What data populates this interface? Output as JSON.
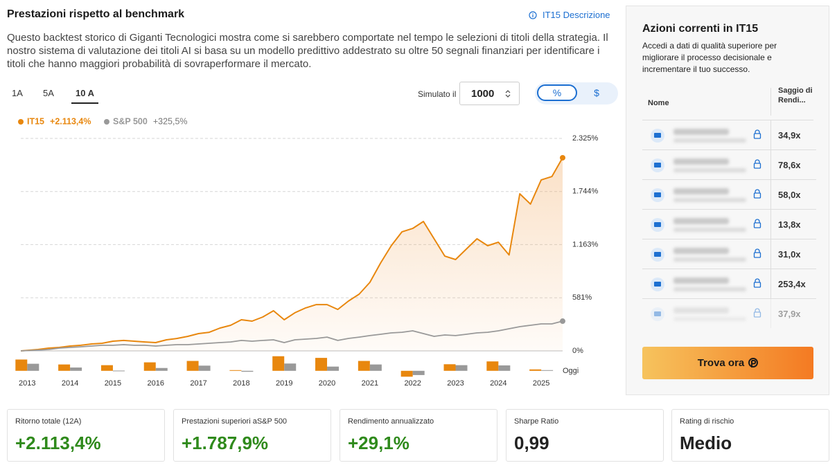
{
  "header": {
    "title": "Prestazioni rispetto al benchmark",
    "link": "IT15 Descrizione"
  },
  "description": "Questo backtest storico di Giganti Tecnologici mostra come si sarebbero comportate nel tempo le selezioni di titoli della strategia. Il nostro sistema di valutazione dei titoli AI si basa su un modello predittivo addestrato su oltre 50 segnali finanziari per identificare i titoli che hanno maggiori probabilità di sovraperformare il mercato.",
  "period_tabs": [
    "1A",
    "5A",
    "10 A"
  ],
  "simulator": {
    "label": "Simulato il",
    "amount": 1000
  },
  "unit_toggle": [
    "%",
    "$"
  ],
  "chart_data": [
    {
      "type": "line",
      "x": [
        2012.85,
        2013.25,
        2013.5,
        2013.75,
        2014,
        2014.25,
        2014.5,
        2014.75,
        2015,
        2015.25,
        2015.5,
        2015.75,
        2016,
        2016.25,
        2016.5,
        2016.75,
        2017,
        2017.25,
        2017.5,
        2017.75,
        2018,
        2018.25,
        2018.5,
        2018.75,
        2019,
        2019.25,
        2019.5,
        2019.75,
        2020,
        2020.25,
        2020.5,
        2020.75,
        2021,
        2021.25,
        2021.5,
        2021.75,
        2022,
        2022.25,
        2022.5,
        2022.75,
        2023,
        2023.25,
        2023.5,
        2023.75,
        2024,
        2024.25,
        2024.5,
        2024.75,
        2025,
        2025.25,
        2025.5
      ],
      "series": [
        {
          "name": "IT15",
          "color": "#e8870e",
          "total_label": "+2.113,4%",
          "values": [
            0,
            15,
            30,
            38,
            53,
            61,
            76,
            83,
            106,
            114,
            106,
            98,
            91,
            121,
            136,
            159,
            189,
            204,
            250,
            280,
            341,
            326,
            371,
            439,
            341,
            417,
            470,
            507,
            507,
            454,
            545,
            621,
            750,
            962,
            1151,
            1303,
            1340,
            1416,
            1227,
            1037,
            1000,
            1113,
            1227,
            1151,
            1189,
            1050,
            1719,
            1606,
            1871,
            1908,
            2113.4
          ]
        },
        {
          "name": "S&P 500",
          "color": "#999999",
          "total_label": "+325,5%",
          "values": [
            0,
            8,
            15,
            30,
            38,
            45,
            53,
            61,
            61,
            68,
            61,
            61,
            53,
            61,
            68,
            68,
            76,
            83,
            91,
            98,
            114,
            106,
            114,
            121,
            91,
            121,
            129,
            136,
            151,
            114,
            136,
            151,
            167,
            182,
            197,
            204,
            220,
            189,
            159,
            174,
            167,
            182,
            197,
            204,
            220,
            242,
            265,
            280,
            295,
            295,
            325.5
          ]
        }
      ],
      "xlim": [
        2012.85,
        2025.5
      ],
      "ylim": [
        0,
        2325
      ],
      "yticks": [
        {
          "value": 0,
          "label": "0%"
        },
        {
          "value": 581,
          "label": "581%"
        },
        {
          "value": 1163,
          "label": "1.163%"
        },
        {
          "value": 1744,
          "label": "1.744%"
        },
        {
          "value": 2325,
          "label": "2.325%"
        }
      ],
      "grid": true
    },
    {
      "type": "bar",
      "categories": [
        "2013",
        "2014",
        "2015",
        "2016",
        "2017",
        "2018",
        "2019",
        "2020",
        "2021",
        "2022",
        "2023",
        "2024",
        "2025"
      ],
      "series": [
        {
          "color": "#e8870e",
          "values": [
            48,
            27,
            24,
            36,
            42,
            3,
            62,
            55,
            42,
            -25,
            28,
            40,
            6
          ]
        },
        {
          "color": "#999999",
          "values": [
            30,
            14,
            1,
            12,
            22,
            -4,
            31,
            18,
            27,
            -18,
            24,
            23,
            3
          ]
        }
      ],
      "ylim": [
        -30,
        70
      ],
      "end_label": "Oggi"
    }
  ],
  "holdings": {
    "title": "Azioni correnti in IT15",
    "subtitle": "Accedi a dati di qualità superiore per migliorare il processo decisionale e incrementare il tuo successo.",
    "columns": [
      "Nome",
      "Saggio di Rendi..."
    ],
    "values": [
      "34,9x",
      "78,6x",
      "58,0x",
      "13,8x",
      "31,0x",
      "253,4x",
      "37,9x"
    ],
    "button": "Trova ora"
  },
  "stats": [
    {
      "label": "Ritorno totale (12A)",
      "value": "+2.113,4%"
    },
    {
      "label": "Prestazioni superiori aS&P 500",
      "value": "+1.787,9%"
    },
    {
      "label": "Rendimento annualizzato",
      "value": "+29,1%"
    },
    {
      "label": "Sharpe Ratio",
      "value": "0,99"
    },
    {
      "label": "Rating di rischio",
      "value": "Medio"
    }
  ]
}
